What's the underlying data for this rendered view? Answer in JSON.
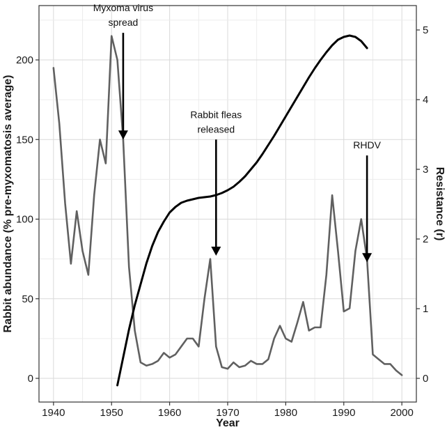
{
  "chart_data": {
    "type": "line",
    "title": "",
    "xlabel": "Year",
    "ylabel_left": "Rabbit abundance (% pre-myxomatosis average)",
    "ylabel_right": "Resistance (r)",
    "xlim": [
      1940,
      2000
    ],
    "ylim_left": [
      0,
      225
    ],
    "ylim_right": [
      0,
      5
    ],
    "x_ticks": [
      1940,
      1950,
      1960,
      1970,
      1980,
      1990,
      2000
    ],
    "y_ticks_left": [
      0,
      50,
      100,
      150,
      200
    ],
    "y_ticks_right": [
      0,
      1,
      2,
      3,
      4,
      5
    ],
    "grid": true,
    "series": [
      {
        "color": "#606060",
        "axis": "left",
        "x": [
          1940,
          1941,
          1942,
          1943,
          1944,
          1945,
          1946,
          1947,
          1948,
          1949,
          1950,
          1951,
          1952,
          1953,
          1954,
          1955,
          1956,
          1957,
          1958,
          1959,
          1960,
          1961,
          1962,
          1963,
          1964,
          1965,
          1966,
          1967,
          1968,
          1969,
          1970,
          1971,
          1972,
          1973,
          1974,
          1975,
          1976,
          1977,
          1978,
          1979,
          1980,
          1981,
          1982,
          1983,
          1984,
          1985,
          1986,
          1987,
          1988,
          1989,
          1990,
          1991,
          1992,
          1993,
          1994,
          1995,
          1996,
          1997,
          1998,
          1999,
          2000
        ],
        "values": [
          195,
          160,
          110,
          72,
          105,
          80,
          65,
          115,
          150,
          135,
          215,
          200,
          150,
          70,
          30,
          10,
          8,
          9,
          11,
          16,
          13,
          15,
          20,
          25,
          25,
          20,
          50,
          75,
          20,
          7,
          6,
          10,
          7,
          8,
          11,
          9,
          9,
          12,
          25,
          33,
          25,
          23,
          35,
          48,
          30,
          32,
          32,
          65,
          115,
          80,
          42,
          44,
          80,
          100,
          75,
          15,
          12,
          9,
          9,
          5,
          2
        ]
      },
      {
        "color": "#000000",
        "axis": "right",
        "x": [
          1951,
          1952,
          1953,
          1954,
          1955,
          1956,
          1957,
          1958,
          1959,
          1960,
          1961,
          1962,
          1963,
          1964,
          1965,
          1966,
          1967,
          1968,
          1969,
          1970,
          1971,
          1972,
          1973,
          1974,
          1975,
          1976,
          1977,
          1978,
          1979,
          1980,
          1981,
          1982,
          1983,
          1984,
          1985,
          1986,
          1987,
          1988,
          1989,
          1990,
          1991,
          1992,
          1993,
          1994
        ],
        "values": [
          -0.1,
          0.3,
          0.7,
          1.05,
          1.35,
          1.65,
          1.9,
          2.1,
          2.25,
          2.38,
          2.46,
          2.52,
          2.55,
          2.57,
          2.59,
          2.6,
          2.61,
          2.63,
          2.66,
          2.7,
          2.75,
          2.82,
          2.9,
          3.0,
          3.1,
          3.22,
          3.35,
          3.48,
          3.62,
          3.76,
          3.9,
          4.04,
          4.18,
          4.32,
          4.45,
          4.57,
          4.68,
          4.78,
          4.86,
          4.9,
          4.92,
          4.9,
          4.84,
          4.74
        ]
      }
    ],
    "annotations": [
      {
        "lines": [
          "Myxoma virus",
          "spread"
        ],
        "year": 1952,
        "arrow_top_value": 217,
        "arrow_tip_value": 150
      },
      {
        "lines": [
          "Rabbit fleas",
          "released"
        ],
        "year": 1968,
        "arrow_top_value": 150,
        "arrow_tip_value": 77
      },
      {
        "lines": [
          "RHDV"
        ],
        "year": 1994,
        "arrow_top_value": 140,
        "arrow_tip_value": 73
      }
    ]
  }
}
